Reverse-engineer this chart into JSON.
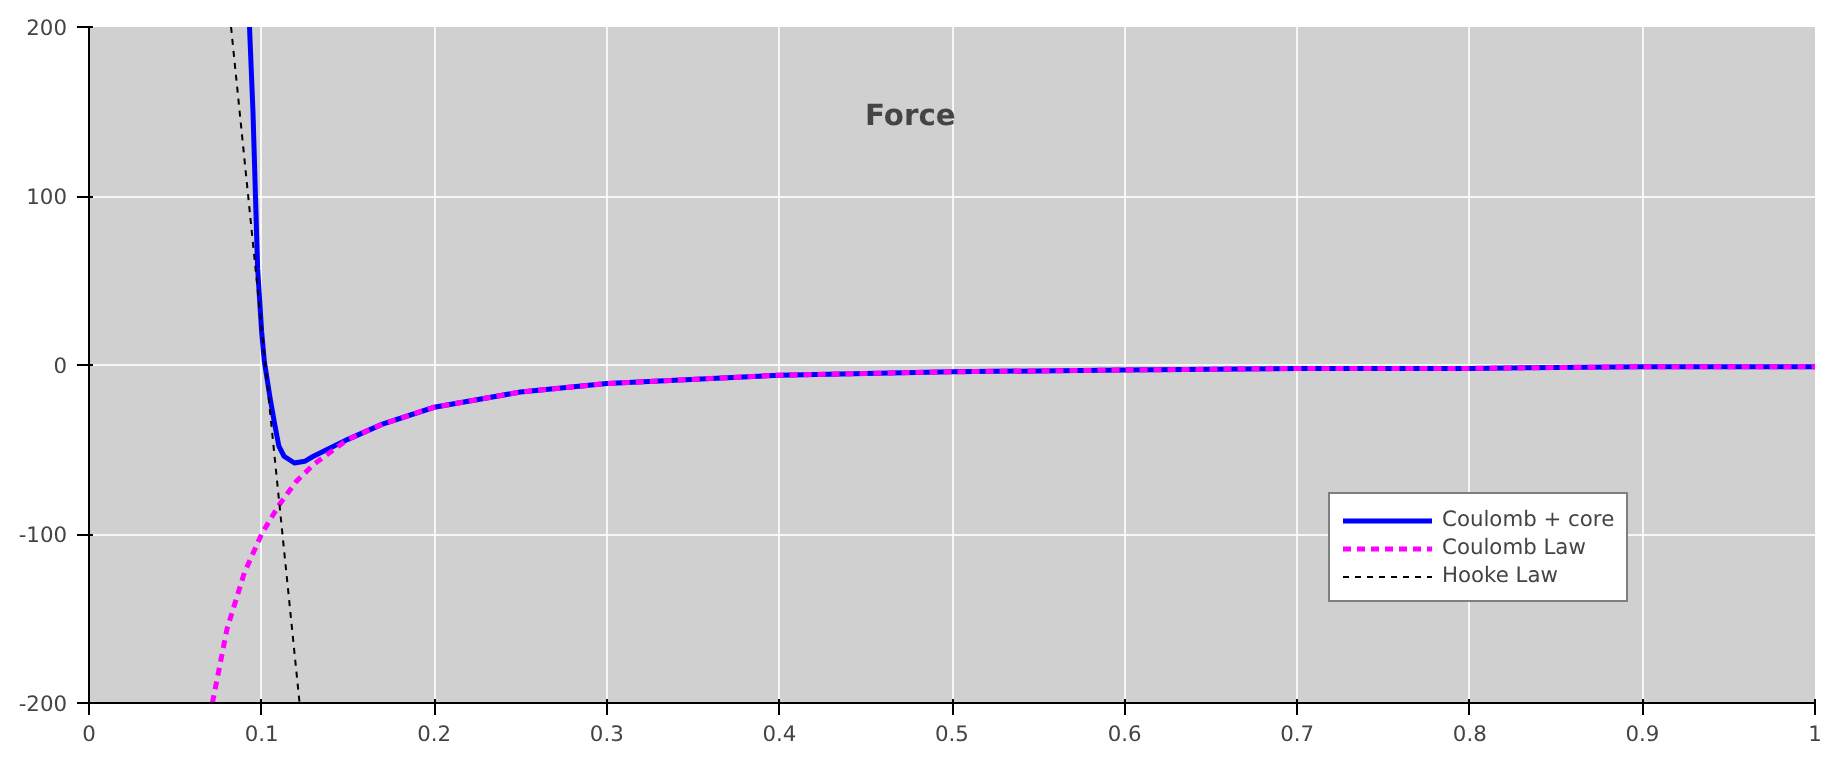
{
  "chart_data": {
    "type": "line",
    "title": "Force",
    "xlim": [
      0,
      1
    ],
    "ylim": [
      -200,
      200
    ],
    "xticks": [
      0,
      0.1,
      0.2,
      0.3,
      0.4,
      0.5,
      0.6,
      0.7,
      0.8,
      0.9,
      1
    ],
    "yticks": [
      -200,
      -100,
      0,
      100,
      200
    ],
    "grid": true,
    "legend": "bottom right",
    "marker": "none",
    "series": [
      {
        "name": "Coulomb + core",
        "color": "#0000ff",
        "line_style": "solid",
        "x": [
          0.093,
          0.095,
          0.0977,
          0.1,
          0.1016,
          0.105,
          0.1074,
          0.11,
          0.113,
          0.119,
          0.125,
          0.13,
          0.14,
          0.15,
          0.17,
          0.2,
          0.25,
          0.3,
          0.4,
          0.5,
          0.6,
          0.7,
          0.8,
          0.9,
          1
        ],
        "values": [
          200,
          150,
          57,
          20,
          2,
          -20,
          -34,
          -48,
          -54,
          -58,
          -57,
          -54,
          -49,
          -44,
          -35,
          -25,
          -16,
          -11,
          -6,
          -4,
          -3,
          -2,
          -2,
          -1,
          -1
        ]
      },
      {
        "name": "Coulomb Law",
        "color": "#ff00ff",
        "line_style": "dashed",
        "x": [
          0.0715,
          0.08,
          0.09,
          0.1,
          0.11,
          0.12,
          0.13,
          0.15,
          0.17,
          0.2,
          0.25,
          0.3,
          0.4,
          0.5,
          0.6,
          0.7,
          0.8,
          0.9,
          1
        ],
        "values": [
          -200,
          -156,
          -123,
          -100,
          -83,
          -69,
          -59,
          -44,
          -35,
          -25,
          -16,
          -11,
          -6,
          -4,
          -3,
          -2,
          -2,
          -1,
          -1
        ]
      },
      {
        "name": "Hooke Law",
        "color": "#000000",
        "line_style": "dashed",
        "x": [
          0.0823,
          0.122
        ],
        "values": [
          200,
          -200
        ]
      }
    ]
  }
}
